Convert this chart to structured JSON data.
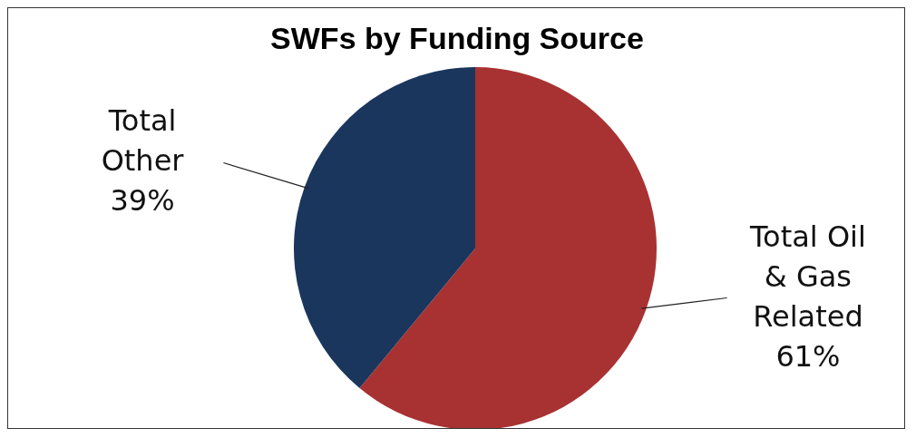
{
  "chart_data": {
    "type": "pie",
    "title": "SWFs by Funding Source",
    "categories": [
      "Total Oil & Gas Related",
      "Total Other"
    ],
    "values": [
      61,
      39
    ],
    "colors": [
      "#a83232",
      "#1b365d"
    ],
    "value_labels": [
      "61%",
      "39%"
    ],
    "legend": false
  }
}
